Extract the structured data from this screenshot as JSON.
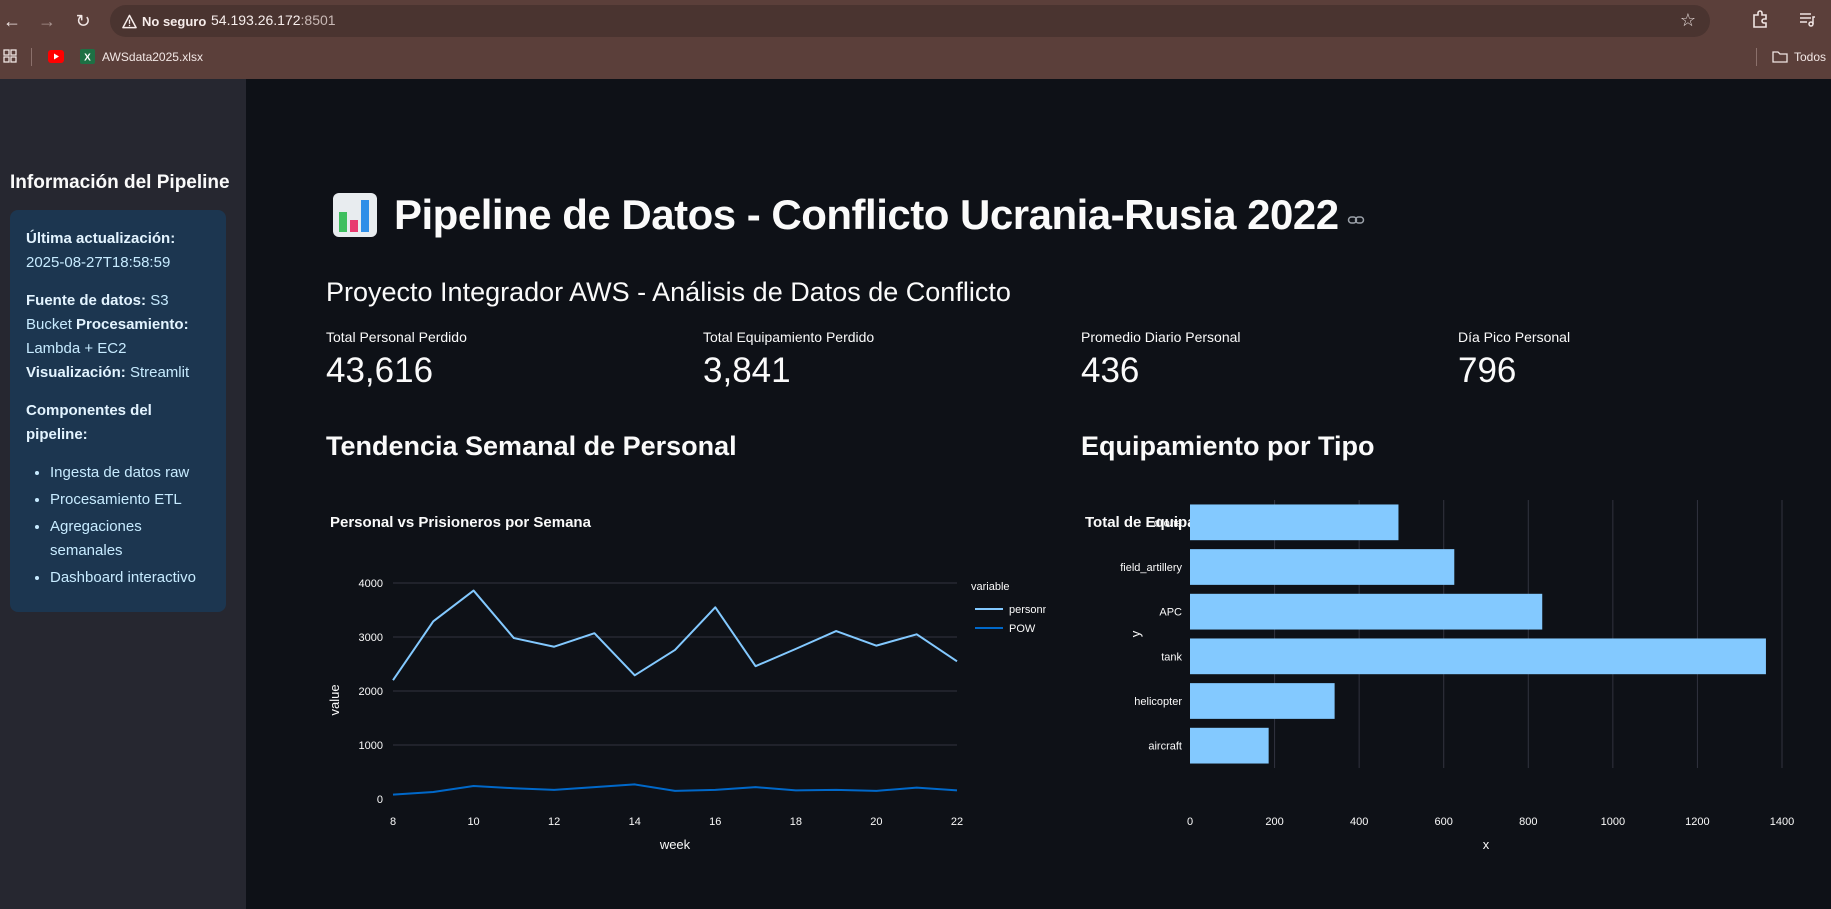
{
  "browser": {
    "security_label": "No seguro",
    "url_host": "54.193.26.172",
    "url_port": ":8501",
    "bookmark_label": "AWSdata2025.xlsx",
    "folder_label": "Todos"
  },
  "sidebar": {
    "title": "Información del Pipeline",
    "last_update_label": "Última actualización:",
    "last_update_value": "2025-08-27T18:58:59",
    "source_label": "Fuente de datos:",
    "source_value": "S3 Bucket",
    "processing_label": "Procesamiento:",
    "processing_value": "Lambda + EC2",
    "viz_label": "Visualización:",
    "viz_value": "Streamlit",
    "components_label": "Componentes del pipeline:",
    "components": [
      "Ingesta de datos raw",
      "Procesamiento ETL",
      "Agregaciones semanales",
      "Dashboard interactivo"
    ]
  },
  "main": {
    "title": "Pipeline de Datos - Conflicto Ucrania-Rusia 2022",
    "subtitle": "Proyecto Integrador AWS - Análisis de Datos de Conflicto",
    "metrics": [
      {
        "label": "Total Personal Perdido",
        "value": "43,616"
      },
      {
        "label": "Total Equipamiento Perdido",
        "value": "3,841"
      },
      {
        "label": "Promedio Diario Personal",
        "value": "436"
      },
      {
        "label": "Día Pico Personal",
        "value": "796"
      }
    ],
    "section_left": "Tendencia Semanal de Personal",
    "section_right": "Equipamiento por Tipo"
  },
  "chart_data": [
    {
      "type": "line",
      "title": "Personal vs Prisioneros por Semana",
      "xlabel": "week",
      "ylabel": "value",
      "legend_title": "variable",
      "legend_position": "right",
      "x": [
        8,
        9,
        10,
        11,
        12,
        13,
        14,
        15,
        16,
        17,
        18,
        19,
        20,
        21,
        22
      ],
      "series": [
        {
          "name": "personnel",
          "color": "#83c9ff",
          "values": [
            2200,
            3290,
            3860,
            2980,
            2820,
            3070,
            2290,
            2760,
            3550,
            2460,
            2780,
            3110,
            2840,
            3050,
            2550
          ]
        },
        {
          "name": "POW",
          "color": "#0068c9",
          "values": [
            80,
            130,
            240,
            200,
            170,
            220,
            270,
            150,
            170,
            220,
            160,
            170,
            150,
            210,
            160
          ]
        }
      ],
      "xlim": [
        8,
        22
      ],
      "ylim": [
        0,
        4000
      ],
      "xticks": [
        8,
        10,
        12,
        14,
        16,
        18,
        20,
        22
      ],
      "yticks": [
        0,
        1000,
        2000,
        3000,
        4000
      ],
      "grid": true
    },
    {
      "type": "bar",
      "orientation": "horizontal",
      "title": "Total de Equipamiento Perdido",
      "xlabel": "x",
      "ylabel": "y",
      "categories": [
        "drone",
        "field_artillery",
        "APC",
        "tank",
        "helicopter",
        "aircraft"
      ],
      "values": [
        493,
        625,
        833,
        1362,
        342,
        186
      ],
      "color": "#83c9ff",
      "xlim": [
        0,
        1400
      ],
      "xticks": [
        0,
        200,
        400,
        600,
        800,
        1000,
        1200,
        1400
      ],
      "grid": true
    }
  ]
}
